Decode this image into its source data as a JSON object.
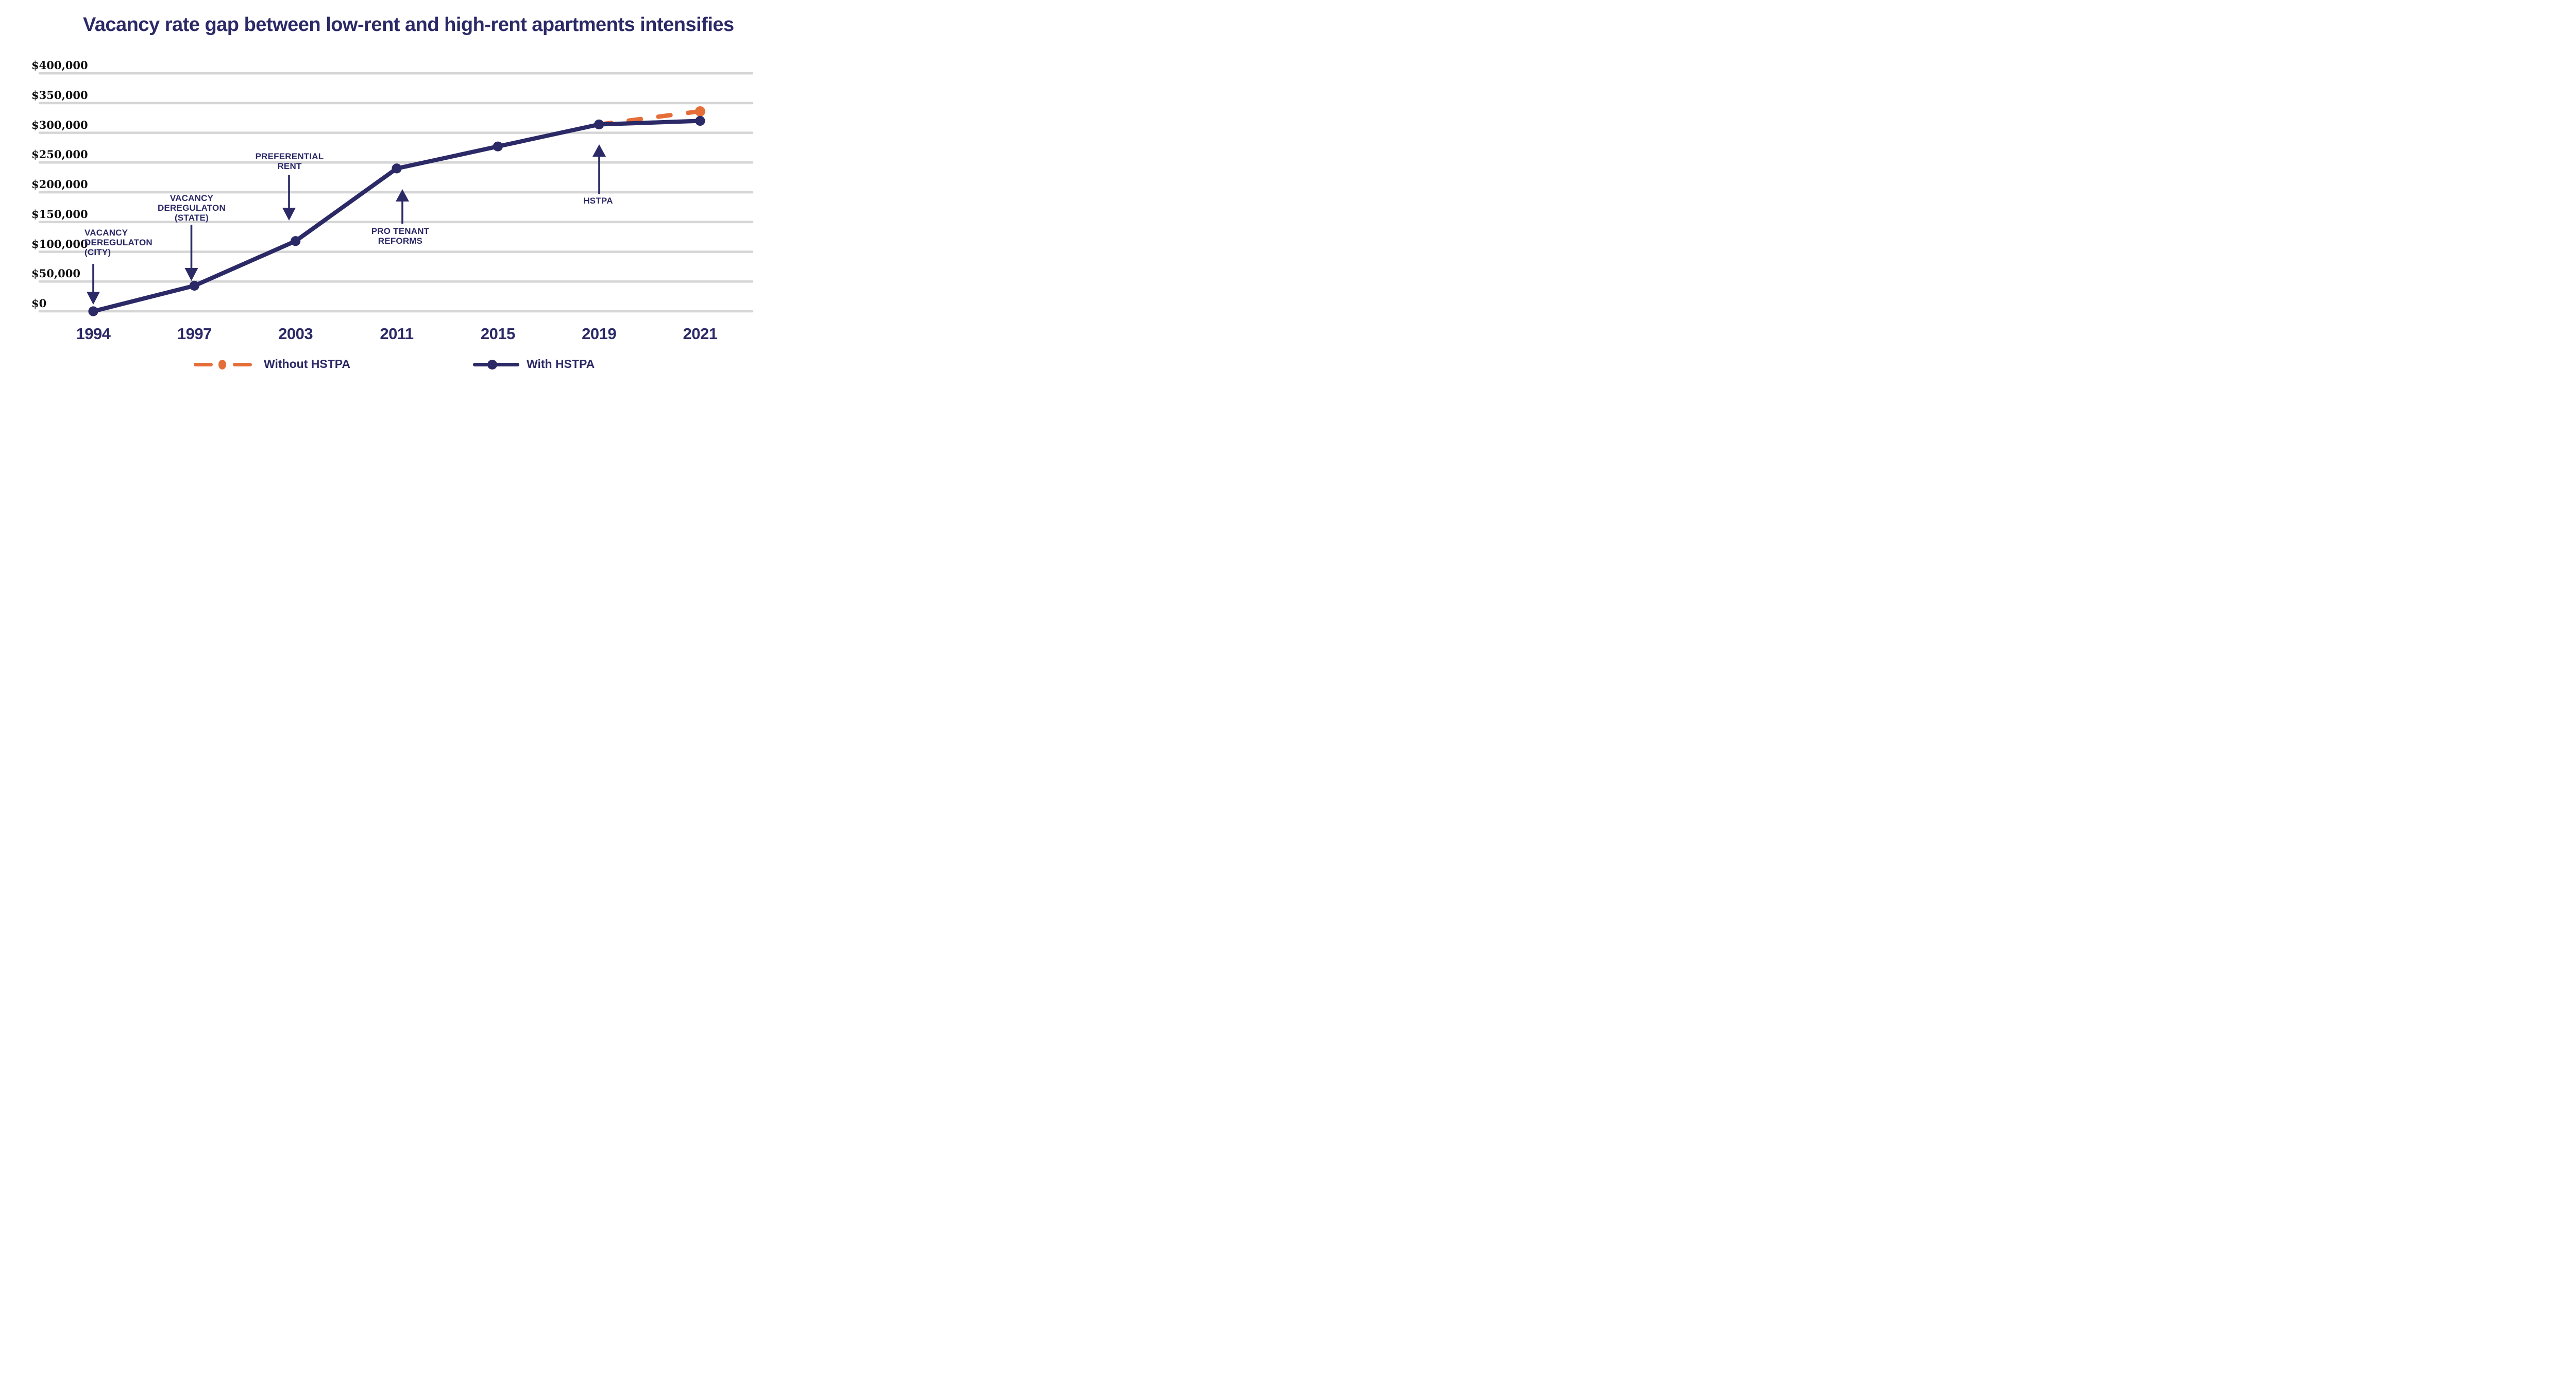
{
  "title": "Vacancy rate gap between low-rent and high-rent apartments intensifies",
  "colors": {
    "navy": "#2b2966",
    "orange": "#e56e38",
    "gridline": "#d6d6d6",
    "y_axis_label": "#0e0e0e",
    "background": "#ffffff"
  },
  "chart_data": {
    "type": "line",
    "title": "Vacancy rate gap between low-rent and high-rent apartments intensifies",
    "x_categories": [
      "1994",
      "1997",
      "2003",
      "2011",
      "2015",
      "2019",
      "2021"
    ],
    "ylim": [
      0,
      400000
    ],
    "grid": "horizontal",
    "legend_position": "bottom",
    "y_tick_labels": [
      "$400,000",
      "$350,000",
      "$300,000",
      "$250,000",
      "$200,000",
      "$150,000",
      "$100,000",
      "$50,000",
      "$0"
    ],
    "y_tick_values": [
      400000,
      350000,
      300000,
      250000,
      200000,
      150000,
      100000,
      50000,
      0
    ],
    "series": [
      {
        "name": "Without HSTPA",
        "color": "#e56e38",
        "style": "dashed",
        "x": [
          "2019",
          "2021"
        ],
        "values": [
          314000,
          336000
        ]
      },
      {
        "name": "With HSTPA",
        "color": "#2b2966",
        "style": "solid",
        "x": [
          "1994",
          "1997",
          "2003",
          "2011",
          "2015",
          "2019",
          "2021"
        ],
        "values": [
          0,
          43000,
          118000,
          240000,
          277000,
          314000,
          320000
        ]
      }
    ],
    "annotations": [
      {
        "label": "VACANCY DEREGULATON (CITY)",
        "lines": [
          "VACANCY",
          "DEREGULATON",
          "(CITY)"
        ],
        "target_year": "1994",
        "arrow": "down"
      },
      {
        "label": "VACANCY DEREGULATON (STATE)",
        "lines": [
          "VACANCY",
          "DEREGULATON",
          "(STATE)"
        ],
        "target_year": "1997",
        "arrow": "down"
      },
      {
        "label": "PREFERENTIAL RENT",
        "lines": [
          "PREFERENTIAL",
          "RENT"
        ],
        "target_year": "2003",
        "arrow": "down"
      },
      {
        "label": "PRO TENANT REFORMS",
        "lines": [
          "PRO TENANT",
          "REFORMS"
        ],
        "target_year": "2011",
        "arrow": "up"
      },
      {
        "label": "HSTPA",
        "lines": [
          "HSTPA"
        ],
        "target_year": "2019",
        "arrow": "up"
      }
    ]
  },
  "legend": {
    "items": [
      {
        "label": "Without HSTPA",
        "marker": "orange-dash-dot-dash",
        "color": "#e56e38"
      },
      {
        "label": "With HSTPA",
        "marker": "navy-line-dot",
        "color": "#2b2966"
      }
    ]
  }
}
